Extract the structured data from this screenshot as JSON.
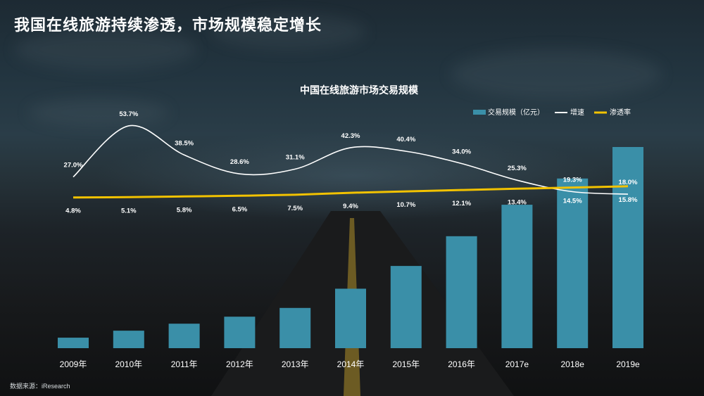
{
  "page": {
    "title": "我国在线旅游持续渗透，市场规模稳定增长",
    "source": "数据来源：iResearch"
  },
  "colors": {
    "bar": "#3a8fa8",
    "growth_line": "#ffffff",
    "penetration_line": "#f2c200"
  },
  "chart_data": {
    "type": "bar",
    "title": "中国在线旅游市场交易规模",
    "categories": [
      "2009年",
      "2010年",
      "2011年",
      "2012年",
      "2013年",
      "2014年",
      "2015年",
      "2016年",
      "2017e",
      "2018e",
      "2019e"
    ],
    "series": [
      {
        "name": "交易规模（亿元）",
        "type": "bar",
        "values": [
          600,
          1000,
          1400,
          1800,
          2300,
          3400,
          4700,
          6400,
          8200,
          9700,
          11500
        ]
      },
      {
        "name": "增速",
        "type": "line",
        "values": [
          27.0,
          53.7,
          38.5,
          28.6,
          31.1,
          42.3,
          40.4,
          34.0,
          25.3,
          19.3,
          18.0
        ],
        "labels": [
          "27.0%",
          "53.7%",
          "38.5%",
          "28.6%",
          "31.1%",
          "42.3%",
          "40.4%",
          "34.0%",
          "25.3%",
          "19.3%",
          "18.0%"
        ]
      },
      {
        "name": "渗透率",
        "type": "line",
        "values": [
          4.8,
          5.1,
          5.8,
          6.5,
          7.5,
          9.4,
          10.7,
          12.1,
          13.4,
          14.5,
          15.8
        ],
        "labels": [
          "4.8%",
          "5.1%",
          "5.8%",
          "6.5%",
          "7.5%",
          "9.4%",
          "10.7%",
          "12.1%",
          "13.4%",
          "14.5%",
          "15.8%"
        ]
      }
    ],
    "legend_position": "top-right",
    "grid": false,
    "y_axis_visible": false
  }
}
